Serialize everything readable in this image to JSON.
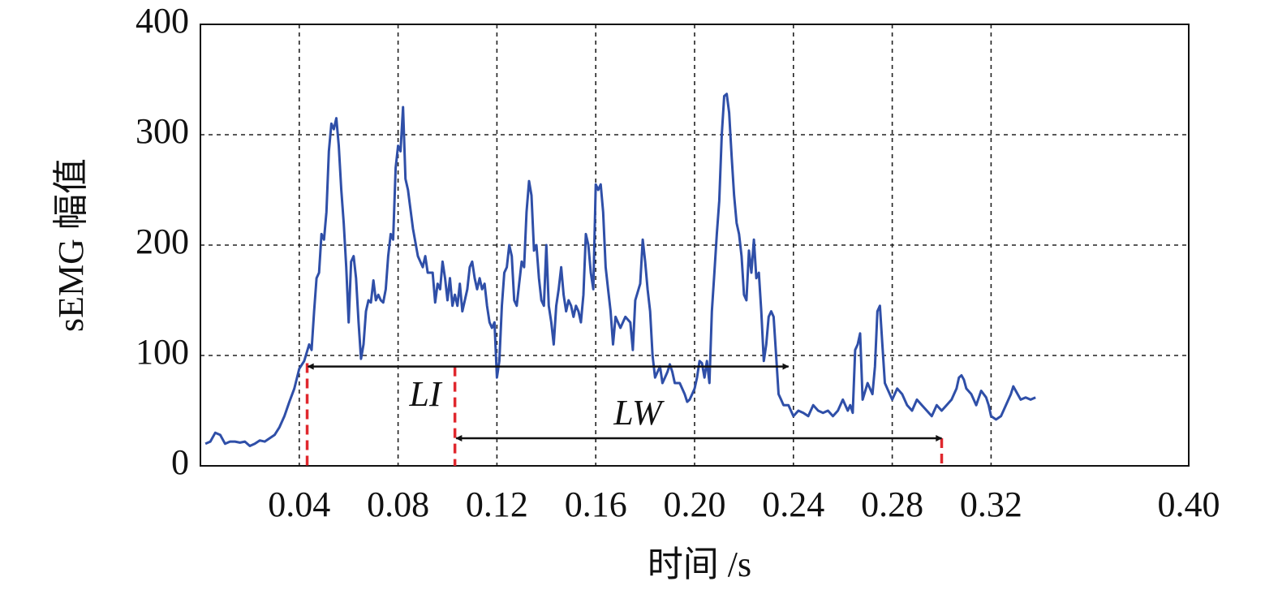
{
  "chart_data": {
    "type": "line",
    "xlabel": "时间 /s",
    "ylabel": "sEMG 幅值",
    "x": [
      0.002,
      0.004,
      0.006,
      0.008,
      0.01,
      0.012,
      0.014,
      0.016,
      0.018,
      0.02,
      0.022,
      0.024,
      0.026,
      0.028,
      0.03,
      0.032,
      0.034,
      0.036,
      0.038,
      0.04,
      0.042,
      0.044,
      0.045,
      0.046,
      0.047,
      0.048,
      0.049,
      0.05,
      0.051,
      0.052,
      0.053,
      0.054,
      0.055,
      0.056,
      0.057,
      0.058,
      0.059,
      0.06,
      0.061,
      0.062,
      0.063,
      0.064,
      0.065,
      0.066,
      0.067,
      0.068,
      0.069,
      0.07,
      0.071,
      0.072,
      0.073,
      0.074,
      0.075,
      0.076,
      0.077,
      0.078,
      0.079,
      0.08,
      0.081,
      0.082,
      0.083,
      0.084,
      0.086,
      0.088,
      0.09,
      0.091,
      0.092,
      0.094,
      0.095,
      0.096,
      0.097,
      0.098,
      0.099,
      0.1,
      0.101,
      0.102,
      0.103,
      0.104,
      0.105,
      0.106,
      0.108,
      0.109,
      0.11,
      0.111,
      0.112,
      0.113,
      0.114,
      0.115,
      0.116,
      0.117,
      0.118,
      0.119,
      0.12,
      0.121,
      0.122,
      0.123,
      0.124,
      0.125,
      0.126,
      0.127,
      0.128,
      0.129,
      0.13,
      0.131,
      0.132,
      0.133,
      0.134,
      0.135,
      0.136,
      0.137,
      0.138,
      0.139,
      0.14,
      0.141,
      0.142,
      0.143,
      0.144,
      0.145,
      0.146,
      0.147,
      0.148,
      0.149,
      0.15,
      0.151,
      0.152,
      0.153,
      0.154,
      0.155,
      0.156,
      0.157,
      0.158,
      0.159,
      0.16,
      0.161,
      0.162,
      0.163,
      0.164,
      0.165,
      0.166,
      0.167,
      0.168,
      0.17,
      0.172,
      0.174,
      0.175,
      0.176,
      0.178,
      0.179,
      0.18,
      0.181,
      0.182,
      0.183,
      0.184,
      0.185,
      0.186,
      0.187,
      0.188,
      0.189,
      0.19,
      0.191,
      0.192,
      0.194,
      0.196,
      0.197,
      0.198,
      0.199,
      0.2,
      0.201,
      0.202,
      0.203,
      0.204,
      0.205,
      0.206,
      0.207,
      0.208,
      0.209,
      0.21,
      0.211,
      0.212,
      0.213,
      0.214,
      0.215,
      0.216,
      0.217,
      0.218,
      0.219,
      0.22,
      0.221,
      0.222,
      0.223,
      0.224,
      0.225,
      0.226,
      0.227,
      0.228,
      0.229,
      0.23,
      0.231,
      0.232,
      0.233,
      0.234,
      0.235,
      0.236,
      0.238,
      0.24,
      0.242,
      0.244,
      0.246,
      0.248,
      0.25,
      0.252,
      0.254,
      0.256,
      0.258,
      0.26,
      0.262,
      0.263,
      0.264,
      0.265,
      0.266,
      0.267,
      0.268,
      0.27,
      0.272,
      0.273,
      0.274,
      0.275,
      0.276,
      0.277,
      0.278,
      0.28,
      0.282,
      0.284,
      0.286,
      0.288,
      0.29,
      0.292,
      0.294,
      0.296,
      0.298,
      0.3,
      0.302,
      0.304,
      0.306,
      0.307,
      0.308,
      0.309,
      0.31,
      0.312,
      0.314,
      0.316,
      0.318,
      0.319,
      0.32,
      0.322,
      0.324,
      0.326,
      0.328,
      0.329,
      0.33,
      0.332,
      0.334,
      0.336,
      0.338
    ],
    "values": [
      20,
      22,
      30,
      28,
      20,
      22,
      22,
      21,
      22,
      18,
      20,
      23,
      22,
      25,
      28,
      35,
      45,
      58,
      70,
      88,
      95,
      110,
      105,
      140,
      170,
      175,
      210,
      205,
      230,
      285,
      310,
      305,
      315,
      290,
      250,
      220,
      180,
      130,
      185,
      190,
      170,
      130,
      97,
      110,
      140,
      150,
      148,
      168,
      150,
      155,
      150,
      148,
      160,
      190,
      210,
      205,
      270,
      290,
      285,
      325,
      260,
      250,
      215,
      190,
      180,
      190,
      175,
      175,
      148,
      165,
      160,
      185,
      170,
      150,
      170,
      145,
      155,
      145,
      165,
      140,
      160,
      180,
      185,
      170,
      160,
      170,
      160,
      165,
      145,
      130,
      125,
      130,
      80,
      95,
      145,
      175,
      180,
      200,
      190,
      150,
      145,
      165,
      185,
      180,
      230,
      258,
      245,
      195,
      200,
      170,
      150,
      145,
      200,
      145,
      130,
      110,
      145,
      160,
      180,
      155,
      140,
      150,
      145,
      135,
      145,
      140,
      130,
      155,
      210,
      200,
      175,
      160,
      255,
      250,
      255,
      230,
      180,
      160,
      140,
      110,
      135,
      125,
      135,
      130,
      105,
      150,
      165,
      205,
      185,
      160,
      140,
      100,
      80,
      85,
      90,
      75,
      80,
      85,
      92,
      85,
      75,
      75,
      65,
      58,
      60,
      65,
      70,
      80,
      95,
      93,
      80,
      95,
      75,
      140,
      175,
      210,
      240,
      300,
      335,
      337,
      320,
      280,
      245,
      220,
      210,
      190,
      155,
      150,
      195,
      175,
      205,
      170,
      175,
      140,
      95,
      110,
      135,
      140,
      135,
      100,
      65,
      60,
      55,
      55,
      45,
      50,
      48,
      45,
      55,
      50,
      48,
      50,
      45,
      50,
      60,
      50,
      55,
      48,
      105,
      110,
      120,
      60,
      75,
      65,
      90,
      140,
      145,
      110,
      75,
      70,
      60,
      70,
      65,
      55,
      50,
      60,
      55,
      50,
      45,
      55,
      50,
      55,
      60,
      70,
      80,
      82,
      78,
      70,
      65,
      55,
      68,
      62,
      55,
      45,
      42,
      45,
      55,
      65,
      72,
      68,
      60,
      62,
      60,
      62
    ],
    "color": "#2f4fa8",
    "xlim": [
      0,
      0.4
    ],
    "xticks": [
      {
        "value": 0.04,
        "label": "0.04"
      },
      {
        "value": 0.08,
        "label": "0.08"
      },
      {
        "value": 0.12,
        "label": "0.12"
      },
      {
        "value": 0.16,
        "label": "0.16"
      },
      {
        "value": 0.2,
        "label": "0.20"
      },
      {
        "value": 0.24,
        "label": "0.24"
      },
      {
        "value": 0.28,
        "label": "0.28"
      },
      {
        "value": 0.32,
        "label": "0.32"
      },
      {
        "value": 0.4,
        "label": "0.40"
      }
    ],
    "ylim": [
      0,
      400
    ],
    "yticks": [
      0,
      100,
      200,
      300,
      400
    ],
    "grid": true,
    "markers": [
      {
        "x": 0.0432,
        "y": 93
      },
      {
        "x": 0.103,
        "y": 90
      },
      {
        "x": 0.3,
        "y": 25
      }
    ],
    "marker_color": "#e0282e",
    "annotations": [
      {
        "text": "LI",
        "from": 0.0435,
        "to": 0.238,
        "y": 90,
        "label_x": 0.091,
        "label_y": 62
      },
      {
        "text": "LW",
        "from": 0.1035,
        "to": 0.3,
        "y": 25,
        "label_x": 0.177,
        "label_y": 45
      }
    ]
  }
}
